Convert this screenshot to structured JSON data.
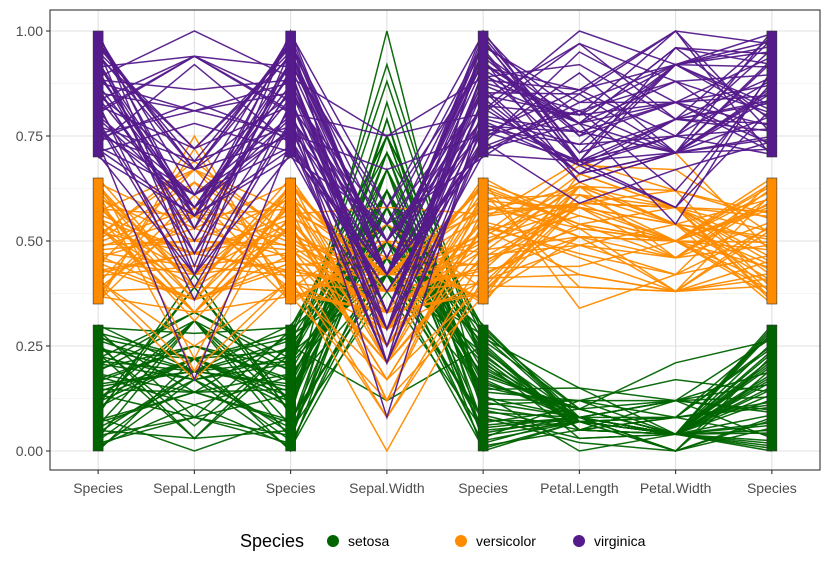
{
  "chart_data": {
    "type": "parallel-coordinates",
    "x_axis": [
      "Species",
      "Sepal.Length",
      "Species",
      "Sepal.Width",
      "Species",
      "Petal.Length",
      "Petal.Width",
      "Species"
    ],
    "y_ticks": [
      "0.00",
      "0.25",
      "0.50",
      "0.75",
      "1.00"
    ],
    "ylim": [
      0,
      1
    ],
    "grid": true,
    "legend": {
      "title": "Species",
      "position": "bottom",
      "entries": [
        {
          "name": "setosa",
          "color": "#006400"
        },
        {
          "name": "versicolor",
          "color": "#FF8C00"
        },
        {
          "name": "virginica",
          "color": "#551A8B"
        }
      ]
    },
    "species_bands": {
      "setosa": [
        0.0,
        0.3
      ],
      "versicolor": [
        0.35,
        0.65
      ],
      "virginica": [
        0.7,
        1.0
      ]
    },
    "variables": {
      "Sepal.Length": [
        0.0,
        1.0
      ],
      "Sepal.Width": [
        0.0,
        1.0
      ],
      "Petal.Length": [
        0.0,
        1.0
      ],
      "Petal.Width": [
        0.0,
        1.0
      ]
    },
    "series": [
      {
        "name": "setosa",
        "color": "#006400",
        "Sepal.Length": [
          0.22,
          0.17,
          0.11,
          0.08,
          0.19,
          0.31,
          0.08,
          0.19,
          0.03,
          0.17,
          0.31,
          0.14,
          0.14,
          0.0,
          0.42,
          0.39,
          0.31,
          0.22,
          0.39,
          0.22,
          0.31,
          0.22,
          0.08,
          0.22,
          0.14,
          0.19,
          0.19,
          0.25,
          0.25,
          0.11,
          0.14,
          0.31,
          0.25,
          0.33,
          0.17,
          0.19,
          0.33,
          0.17,
          0.03,
          0.22,
          0.19,
          0.06,
          0.03,
          0.19,
          0.22,
          0.14,
          0.22,
          0.08,
          0.28,
          0.19
        ],
        "Sepal.Width": [
          0.62,
          0.42,
          0.5,
          0.46,
          0.67,
          0.79,
          0.58,
          0.58,
          0.38,
          0.46,
          0.71,
          0.58,
          0.42,
          0.42,
          0.83,
          1.0,
          0.79,
          0.62,
          0.75,
          0.75,
          0.58,
          0.71,
          0.67,
          0.54,
          0.58,
          0.42,
          0.58,
          0.62,
          0.58,
          0.5,
          0.46,
          0.58,
          0.88,
          0.92,
          0.46,
          0.5,
          0.62,
          0.67,
          0.42,
          0.58,
          0.62,
          0.12,
          0.5,
          0.62,
          0.75,
          0.42,
          0.75,
          0.5,
          0.71,
          0.54
        ],
        "Petal.Length": [
          0.07,
          0.07,
          0.05,
          0.08,
          0.07,
          0.12,
          0.07,
          0.08,
          0.07,
          0.08,
          0.08,
          0.1,
          0.07,
          0.02,
          0.03,
          0.08,
          0.05,
          0.07,
          0.12,
          0.08,
          0.12,
          0.08,
          0.0,
          0.12,
          0.15,
          0.1,
          0.1,
          0.08,
          0.07,
          0.1,
          0.1,
          0.08,
          0.08,
          0.07,
          0.08,
          0.03,
          0.05,
          0.07,
          0.05,
          0.08,
          0.05,
          0.05,
          0.05,
          0.1,
          0.15,
          0.07,
          0.1,
          0.07,
          0.08,
          0.07
        ],
        "Petal.Width": [
          0.04,
          0.04,
          0.04,
          0.04,
          0.04,
          0.12,
          0.08,
          0.04,
          0.04,
          0.0,
          0.04,
          0.04,
          0.0,
          0.0,
          0.04,
          0.12,
          0.12,
          0.08,
          0.08,
          0.08,
          0.04,
          0.12,
          0.04,
          0.17,
          0.04,
          0.04,
          0.12,
          0.04,
          0.04,
          0.04,
          0.04,
          0.12,
          0.0,
          0.04,
          0.04,
          0.04,
          0.04,
          0.0,
          0.04,
          0.04,
          0.08,
          0.08,
          0.04,
          0.21,
          0.12,
          0.08,
          0.04,
          0.04,
          0.04,
          0.04
        ]
      },
      {
        "name": "versicolor",
        "color": "#FF8C00",
        "Sepal.Length": [
          0.75,
          0.58,
          0.72,
          0.33,
          0.61,
          0.39,
          0.56,
          0.17,
          0.64,
          0.25,
          0.19,
          0.44,
          0.47,
          0.47,
          0.36,
          0.67,
          0.36,
          0.42,
          0.53,
          0.36,
          0.44,
          0.5,
          0.56,
          0.5,
          0.58,
          0.64,
          0.69,
          0.67,
          0.47,
          0.39,
          0.33,
          0.33,
          0.42,
          0.47,
          0.31,
          0.47,
          0.67,
          0.56,
          0.36,
          0.33,
          0.33,
          0.5,
          0.42,
          0.19,
          0.36,
          0.39,
          0.39,
          0.53,
          0.22,
          0.39
        ],
        "Sepal.Width": [
          0.5,
          0.5,
          0.46,
          0.12,
          0.33,
          0.33,
          0.54,
          0.17,
          0.38,
          0.29,
          0.0,
          0.42,
          0.08,
          0.38,
          0.38,
          0.46,
          0.42,
          0.29,
          0.08,
          0.21,
          0.5,
          0.33,
          0.21,
          0.33,
          0.38,
          0.42,
          0.33,
          0.42,
          0.38,
          0.25,
          0.17,
          0.17,
          0.29,
          0.29,
          0.42,
          0.58,
          0.46,
          0.12,
          0.42,
          0.21,
          0.25,
          0.42,
          0.25,
          0.12,
          0.29,
          0.42,
          0.38,
          0.38,
          0.21,
          0.33
        ],
        "Petal.Length": [
          0.63,
          0.59,
          0.66,
          0.51,
          0.61,
          0.59,
          0.63,
          0.39,
          0.61,
          0.49,
          0.42,
          0.54,
          0.51,
          0.63,
          0.44,
          0.58,
          0.59,
          0.53,
          0.59,
          0.49,
          0.64,
          0.51,
          0.66,
          0.63,
          0.56,
          0.58,
          0.64,
          0.68,
          0.59,
          0.42,
          0.47,
          0.46,
          0.49,
          0.69,
          0.59,
          0.59,
          0.63,
          0.58,
          0.53,
          0.51,
          0.58,
          0.61,
          0.51,
          0.39,
          0.54,
          0.54,
          0.54,
          0.56,
          0.34,
          0.53
        ],
        "Petal.Width": [
          0.54,
          0.58,
          0.58,
          0.5,
          0.58,
          0.5,
          0.62,
          0.38,
          0.5,
          0.54,
          0.38,
          0.58,
          0.38,
          0.54,
          0.5,
          0.54,
          0.58,
          0.38,
          0.58,
          0.42,
          0.71,
          0.5,
          0.58,
          0.46,
          0.5,
          0.54,
          0.54,
          0.67,
          0.58,
          0.38,
          0.42,
          0.38,
          0.46,
          0.62,
          0.58,
          0.62,
          0.58,
          0.5,
          0.5,
          0.5,
          0.46,
          0.54,
          0.46,
          0.38,
          0.5,
          0.46,
          0.5,
          0.5,
          0.42,
          0.5
        ]
      },
      {
        "name": "virginica",
        "color": "#551A8B",
        "Sepal.Length": [
          0.56,
          0.42,
          0.78,
          0.56,
          0.61,
          0.92,
          0.17,
          0.83,
          0.67,
          0.81,
          0.61,
          0.58,
          0.69,
          0.39,
          0.42,
          0.58,
          0.61,
          0.94,
          0.94,
          0.47,
          0.72,
          0.36,
          0.94,
          0.56,
          0.67,
          0.81,
          0.53,
          0.5,
          0.58,
          0.81,
          0.86,
          1.0,
          0.58,
          0.56,
          0.5,
          0.94,
          0.56,
          0.58,
          0.47,
          0.72,
          0.67,
          0.72,
          0.42,
          0.69,
          0.67,
          0.67,
          0.56,
          0.61,
          0.53,
          0.44
        ],
        "Sepal.Width": [
          0.54,
          0.29,
          0.42,
          0.38,
          0.42,
          0.42,
          0.21,
          0.38,
          0.21,
          0.67,
          0.5,
          0.29,
          0.42,
          0.21,
          0.33,
          0.5,
          0.42,
          0.75,
          0.25,
          0.08,
          0.5,
          0.33,
          0.33,
          0.29,
          0.54,
          0.5,
          0.33,
          0.42,
          0.33,
          0.42,
          0.33,
          0.75,
          0.33,
          0.33,
          0.25,
          0.42,
          0.58,
          0.46,
          0.42,
          0.46,
          0.46,
          0.46,
          0.29,
          0.5,
          0.54,
          0.42,
          0.21,
          0.42,
          0.58,
          0.42
        ],
        "Petal.Length": [
          0.85,
          0.69,
          0.83,
          0.78,
          0.81,
          0.95,
          0.59,
          0.9,
          0.81,
          0.86,
          0.69,
          0.73,
          0.76,
          0.68,
          0.69,
          0.73,
          0.76,
          0.97,
          1.0,
          0.68,
          0.8,
          0.66,
          0.97,
          0.66,
          0.8,
          0.85,
          0.64,
          0.66,
          0.78,
          0.81,
          0.86,
          0.92,
          0.78,
          0.69,
          0.78,
          0.86,
          0.78,
          0.76,
          0.64,
          0.75,
          0.78,
          0.69,
          0.69,
          0.83,
          0.8,
          0.71,
          0.68,
          0.71,
          0.75,
          0.69
        ],
        "Petal.Width": [
          1.0,
          0.75,
          0.83,
          0.71,
          0.88,
          0.83,
          0.67,
          0.71,
          0.71,
          1.0,
          0.79,
          0.75,
          0.83,
          0.79,
          0.96,
          0.92,
          0.71,
          0.88,
          0.92,
          0.58,
          0.92,
          0.79,
          0.79,
          0.71,
          0.83,
          0.71,
          0.71,
          0.71,
          0.83,
          0.62,
          0.75,
          0.79,
          0.88,
          0.58,
          0.54,
          0.92,
          0.96,
          0.71,
          0.71,
          0.83,
          0.96,
          0.92,
          0.75,
          0.92,
          1.0,
          0.92,
          0.75,
          0.79,
          0.92,
          0.71
        ]
      }
    ]
  }
}
